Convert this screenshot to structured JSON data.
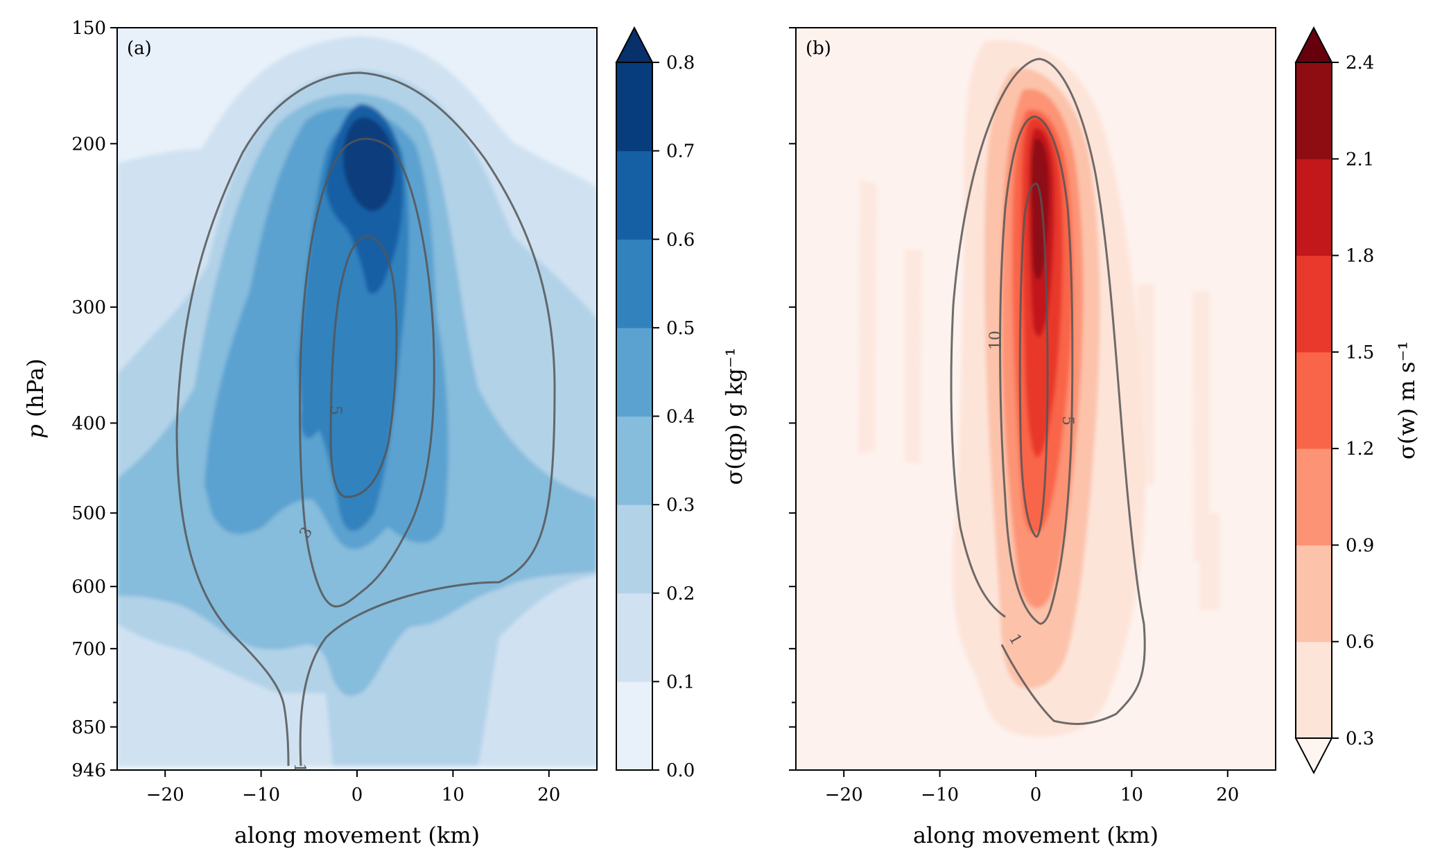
{
  "chart_data": [
    {
      "type": "filled-contour",
      "panel_label": "(a)",
      "xlabel": "along movement (km)",
      "ylabel": "p (hPa)",
      "xticks": [
        -20,
        -10,
        0,
        10,
        20
      ],
      "yticks": [
        150,
        200,
        300,
        400,
        500,
        600,
        700,
        850,
        946
      ],
      "xlim": [
        -25,
        25
      ],
      "ylim": [
        946,
        150
      ],
      "y_scale": "log",
      "colorbar": {
        "label": "σ(qp) g kg⁻¹",
        "levels": [
          0.0,
          0.1,
          0.2,
          0.3,
          0.4,
          0.5,
          0.6,
          0.7,
          0.8
        ],
        "tick_labels": [
          "0.0",
          "0.1",
          "0.2",
          "0.3",
          "0.4",
          "0.5",
          "0.6",
          "0.7",
          "0.8"
        ],
        "colors": [
          "#e8f1fa",
          "#d0e2f2",
          "#b2d2e8",
          "#86bcdc",
          "#5ba2d0",
          "#3282be",
          "#155fa5",
          "#083d7d"
        ],
        "extend": "max",
        "extend_color": "#08306b"
      },
      "contour_labels": [
        "1",
        "3",
        "5"
      ],
      "peak_value": 0.75,
      "peak_location": {
        "x": 1,
        "p": 215
      }
    },
    {
      "type": "filled-contour",
      "panel_label": "(b)",
      "xlabel": "along movement (km)",
      "xticks": [
        -20,
        -10,
        0,
        10,
        20
      ],
      "yticks": [
        150,
        200,
        300,
        400,
        500,
        600,
        700,
        850,
        946
      ],
      "xlim": [
        -25,
        25
      ],
      "ylim": [
        946,
        150
      ],
      "y_scale": "log",
      "colorbar": {
        "label": "σ(w) m s⁻¹",
        "levels": [
          0.3,
          0.6,
          0.9,
          1.2,
          1.5,
          1.8,
          2.1,
          2.4
        ],
        "tick_labels": [
          "0.3",
          "0.6",
          "0.9",
          "1.2",
          "1.5",
          "1.8",
          "2.1",
          "2.4"
        ],
        "colors": [
          "#fde4d9",
          "#fcc2aa",
          "#fc9374",
          "#f96549",
          "#e8392c",
          "#c2181c",
          "#8e0d13"
        ],
        "extend": "both",
        "extend_color_min": "#fff5f0",
        "extend_color_max": "#67000d"
      },
      "contour_labels": [
        "1",
        "5",
        "10"
      ],
      "peak_value": 2.3,
      "peak_location": {
        "x": 1,
        "p": 245
      }
    }
  ]
}
